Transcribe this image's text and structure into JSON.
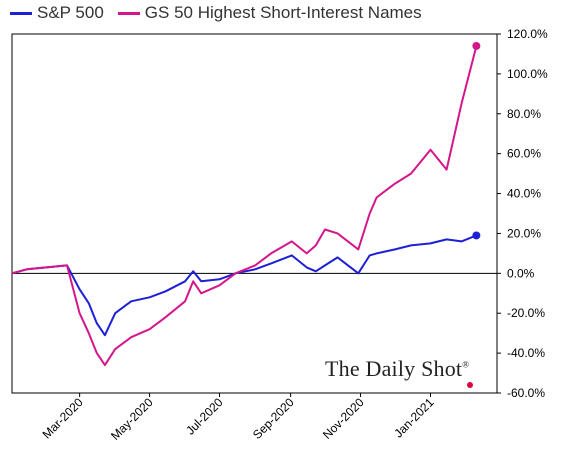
{
  "chart_data": {
    "type": "line",
    "title": "",
    "xlabel": "",
    "ylabel": "",
    "ylim": [
      -60,
      120
    ],
    "y_ticks": [
      120,
      100,
      80,
      60,
      40,
      20,
      0,
      -20,
      -40,
      -60
    ],
    "y_tick_labels": [
      "120.0%",
      "100.0%",
      "80.0%",
      "60.0%",
      "40.0%",
      "20.0%",
      "0.0%",
      "-20.0%",
      "-40.0%",
      "-60.0%"
    ],
    "x_ticks": [
      "2020-03-01",
      "2020-05-01",
      "2020-07-01",
      "2020-09-01",
      "2020-11-01",
      "2021-01-01"
    ],
    "x_tick_labels": [
      "Mar-2020",
      "May-2020",
      "Jul-2020",
      "Sep-2020",
      "Nov-2020",
      "Jan-2021"
    ],
    "xlim": [
      "2020-01-02",
      "2021-02-28"
    ],
    "legend_position": "top",
    "grid": false,
    "zero_line": true,
    "series": [
      {
        "name": "S&P 500",
        "color": "#1f1fd6",
        "marker_end": true,
        "x": [
          "2020-01-02",
          "2020-01-15",
          "2020-02-01",
          "2020-02-19",
          "2020-03-01",
          "2020-03-09",
          "2020-03-16",
          "2020-03-23",
          "2020-04-01",
          "2020-04-15",
          "2020-05-01",
          "2020-05-15",
          "2020-06-01",
          "2020-06-08",
          "2020-06-15",
          "2020-07-01",
          "2020-07-15",
          "2020-08-01",
          "2020-08-15",
          "2020-09-02",
          "2020-09-15",
          "2020-09-23",
          "2020-10-01",
          "2020-10-12",
          "2020-10-30",
          "2020-11-09",
          "2020-11-15",
          "2020-12-01",
          "2020-12-15",
          "2021-01-01",
          "2021-01-15",
          "2021-01-28",
          "2021-02-10"
        ],
        "values": [
          0,
          2,
          3,
          4,
          -8,
          -15,
          -25,
          -31,
          -20,
          -14,
          -12,
          -9,
          -4,
          1,
          -4,
          -3,
          0,
          2,
          5,
          9,
          3,
          1,
          4,
          8,
          0,
          9,
          10,
          12,
          14,
          15,
          17,
          16,
          19
        ]
      },
      {
        "name": "GS 50 Highest Short-Interest Names",
        "color": "#d4168c",
        "marker_end": true,
        "x": [
          "2020-01-02",
          "2020-01-15",
          "2020-02-01",
          "2020-02-19",
          "2020-03-01",
          "2020-03-09",
          "2020-03-16",
          "2020-03-23",
          "2020-04-01",
          "2020-04-15",
          "2020-05-01",
          "2020-05-15",
          "2020-06-01",
          "2020-06-08",
          "2020-06-15",
          "2020-07-01",
          "2020-07-15",
          "2020-08-01",
          "2020-08-15",
          "2020-09-02",
          "2020-09-15",
          "2020-09-23",
          "2020-10-01",
          "2020-10-12",
          "2020-10-30",
          "2020-11-09",
          "2020-11-15",
          "2020-12-01",
          "2020-12-15",
          "2021-01-01",
          "2021-01-15",
          "2021-01-28",
          "2021-02-10"
        ],
        "values": [
          0,
          2,
          3,
          4,
          -20,
          -30,
          -40,
          -46,
          -38,
          -32,
          -28,
          -22,
          -14,
          -4,
          -10,
          -6,
          0,
          4,
          10,
          16,
          10,
          14,
          22,
          20,
          12,
          30,
          38,
          45,
          50,
          62,
          52,
          85,
          114
        ]
      }
    ]
  },
  "watermark": {
    "text": "The Daily Shot",
    "mark": "®"
  }
}
